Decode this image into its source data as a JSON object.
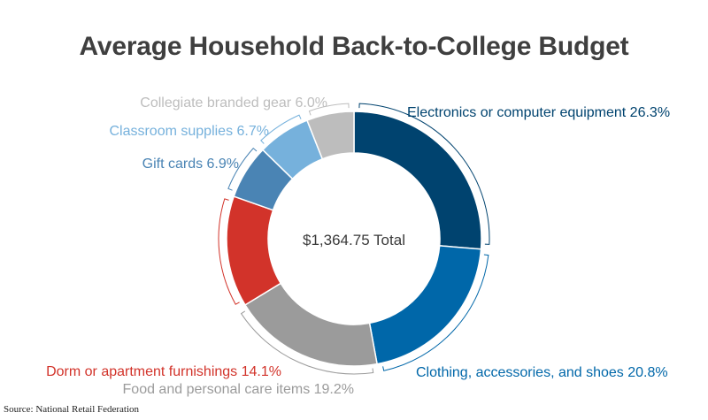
{
  "chart_data": {
    "type": "pie",
    "style": "donut",
    "title": "Average Household Back-to-College Budget",
    "center_label": "$1,364.75 Total",
    "source": "Source: National Retail Federation",
    "slices": [
      {
        "label": "Electronics or computer equipment",
        "value": 26.3,
        "display": "Electronics or computer equipment 26.3%",
        "color": "#00436f"
      },
      {
        "label": "Clothing, accessories, and shoes",
        "value": 20.8,
        "display": "Clothing, accessories, and shoes 20.8%",
        "color": "#0067a9"
      },
      {
        "label": "Food and personal care items",
        "value": 19.2,
        "display": "Food and personal care items 19.2%",
        "color": "#9b9b9b"
      },
      {
        "label": "Dorm or apartment furnishings",
        "value": 14.1,
        "display": "Dorm or apartment furnishings 14.1%",
        "color": "#d2332a"
      },
      {
        "label": "Gift cards",
        "value": 6.9,
        "display": "Gift cards 6.9%",
        "color": "#4a84b4"
      },
      {
        "label": "Classroom supplies",
        "value": 6.7,
        "display": "Classroom supplies 6.7%",
        "color": "#76b1dc"
      },
      {
        "label": "Collegiate branded gear",
        "value": 6.0,
        "display": "Collegiate branded gear 6.0%",
        "color": "#bdbdbd"
      }
    ]
  }
}
